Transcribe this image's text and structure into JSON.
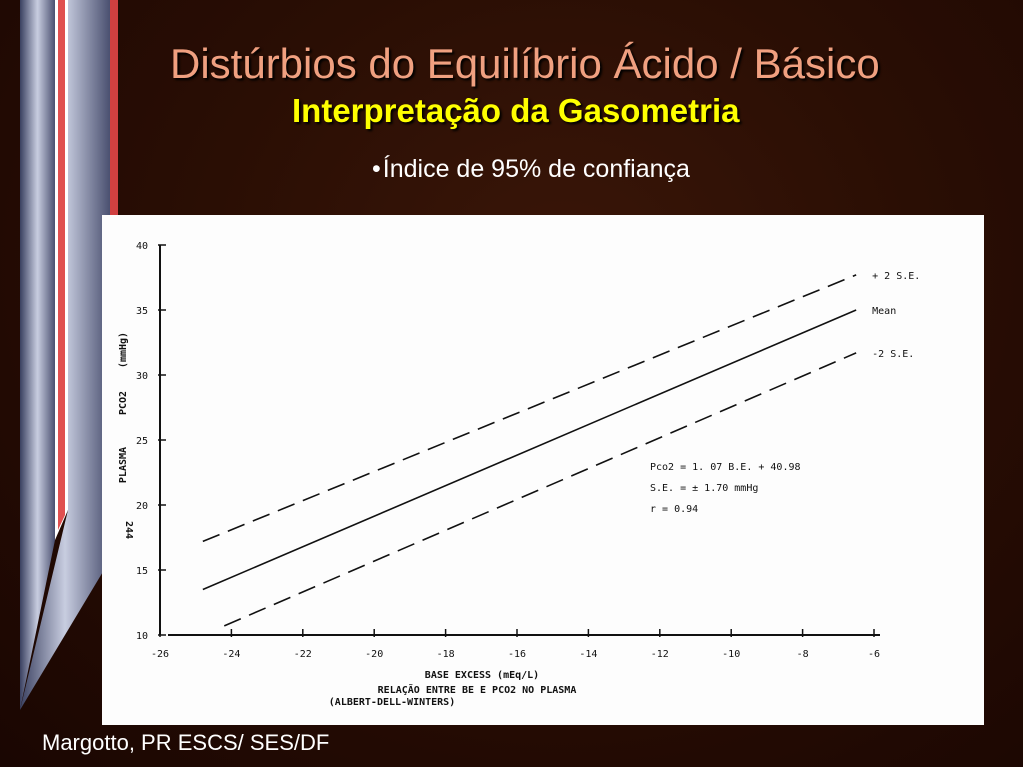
{
  "slide": {
    "title": "Distúrbios do Equilíbrio Ácido / Básico",
    "subtitle": "Interpretação da Gasometria",
    "bullet_mark": "•",
    "bullet_text": "Índice de 95% de confiança",
    "footer": "Margotto, PR ESCS/ SES/DF"
  },
  "chart_data": {
    "type": "line",
    "xlabel": "BASE EXCESS  (mEq/L)",
    "caption_line1": "RELAÇÃO  ENTRE  BE   E  PCO2   NO PLASMA",
    "caption_line2": "(ALBERT-DELL-WINTERS)",
    "ylabel_parts": [
      "PLASMA",
      "PCO2",
      "(mmHg)"
    ],
    "figure_number": "244",
    "xlim": [
      -26,
      -6
    ],
    "ylim": [
      10,
      40
    ],
    "x_ticks": [
      -26,
      -24,
      -22,
      -20,
      -18,
      -16,
      -14,
      -12,
      -10,
      -8,
      -6
    ],
    "x_tick_labels": [
      "-26",
      "-24",
      "-22",
      "-20",
      "-18",
      "-16",
      "-14",
      "-12",
      "-10",
      "-8",
      "-6"
    ],
    "y_ticks": [
      10,
      15,
      20,
      25,
      30,
      35,
      40
    ],
    "y_tick_labels": [
      "10",
      "15",
      "20",
      "25",
      "30",
      "35",
      "40"
    ],
    "series": [
      {
        "name": "+ 2 S.E.",
        "style": "dashed",
        "x": [
          -24.8,
          -6.5
        ],
        "y": [
          17.2,
          37.7
        ]
      },
      {
        "name": "Mean",
        "style": "solid",
        "x": [
          -24.8,
          -6.5
        ],
        "y": [
          13.5,
          35.0
        ]
      },
      {
        "name": "-2 S.E.",
        "style": "dashed",
        "x": [
          -24.2,
          -6.5
        ],
        "y": [
          10.7,
          31.7
        ]
      }
    ],
    "annotations": [
      "Pco2 = 1. 07 B.E. + 40.98",
      "S.E. = ±  1.70 mmHg",
      "r = 0.94"
    ]
  },
  "colors": {
    "title": "#f0a080",
    "subtitle": "#ffff00",
    "text": "#ffffff",
    "ink": "#111111"
  }
}
